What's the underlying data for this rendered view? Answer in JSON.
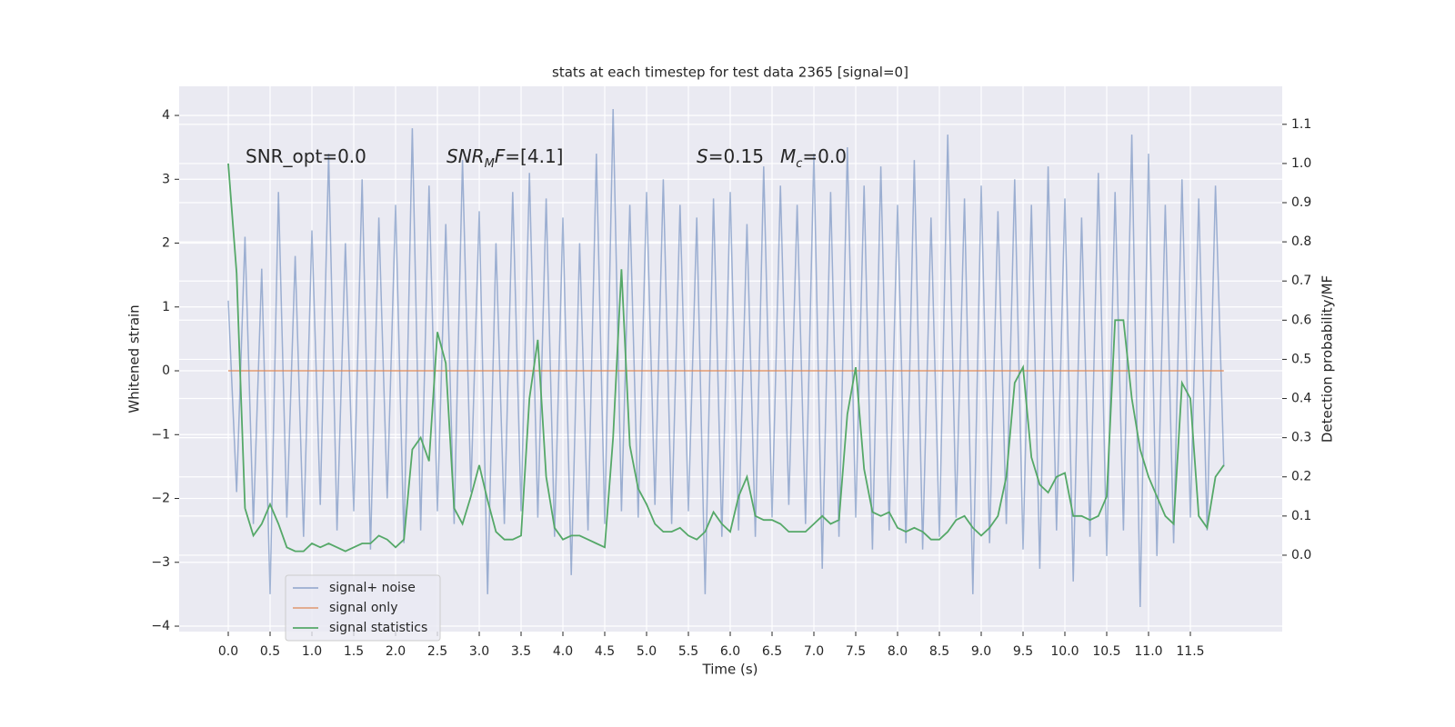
{
  "chart_data": {
    "type": "line",
    "title": "stats at each timestep for test data 2365 [signal=0]",
    "x_label": "Time (s)",
    "y_label": "Whitened strain",
    "y2_label": "Detection probability/MF",
    "x": [
      0.0,
      0.1,
      0.2,
      0.3,
      0.4,
      0.5,
      0.6,
      0.7,
      0.8,
      0.9,
      1.0,
      1.1,
      1.2,
      1.3,
      1.4,
      1.5,
      1.6,
      1.7,
      1.8,
      1.9,
      2.0,
      2.1,
      2.2,
      2.3,
      2.4,
      2.5,
      2.6,
      2.7,
      2.8,
      2.9,
      3.0,
      3.1,
      3.2,
      3.3,
      3.4,
      3.5,
      3.6,
      3.7,
      3.8,
      3.9,
      4.0,
      4.1,
      4.2,
      4.3,
      4.4,
      4.5,
      4.6,
      4.7,
      4.8,
      4.9,
      5.0,
      5.1,
      5.2,
      5.3,
      5.4,
      5.5,
      5.6,
      5.7,
      5.8,
      5.9,
      6.0,
      6.1,
      6.2,
      6.3,
      6.4,
      6.5,
      6.6,
      6.7,
      6.8,
      6.9,
      7.0,
      7.1,
      7.2,
      7.3,
      7.4,
      7.5,
      7.6,
      7.7,
      7.8,
      7.9,
      8.0,
      8.1,
      8.2,
      8.3,
      8.4,
      8.5,
      8.6,
      8.7,
      8.8,
      8.9,
      9.0,
      9.1,
      9.2,
      9.3,
      9.4,
      9.5,
      9.6,
      9.7,
      9.8,
      9.9,
      10.0,
      10.1,
      10.2,
      10.3,
      10.4,
      10.5,
      10.6,
      10.7,
      10.8,
      10.9,
      11.0,
      11.1,
      11.2,
      11.3,
      11.4,
      11.5,
      11.6,
      11.7,
      11.8,
      11.9
    ],
    "series": [
      {
        "name": "signal+ noise",
        "color": "#4c72b0",
        "values": [
          1.1,
          -1.9,
          2.1,
          -2.4,
          1.6,
          -3.5,
          2.8,
          -2.3,
          1.8,
          -2.6,
          2.2,
          -2.1,
          3.4,
          -2.5,
          2.0,
          -2.2,
          3.0,
          -2.8,
          2.4,
          -2.0,
          2.6,
          -2.7,
          3.8,
          -2.5,
          2.9,
          -2.2,
          2.3,
          -2.4,
          3.3,
          -1.9,
          2.5,
          -3.5,
          2.0,
          -2.4,
          2.8,
          -2.2,
          3.1,
          -2.3,
          2.7,
          -2.6,
          2.4,
          -3.2,
          2.0,
          -2.5,
          3.4,
          -2.4,
          4.1,
          -2.2,
          2.6,
          -2.3,
          2.8,
          -2.1,
          3.0,
          -2.4,
          2.6,
          -2.2,
          2.4,
          -3.5,
          2.7,
          -2.6,
          2.8,
          -2.5,
          2.3,
          -2.6,
          3.2,
          -2.3,
          2.9,
          -2.1,
          2.6,
          -2.4,
          3.4,
          -3.1,
          2.8,
          -2.6,
          3.5,
          -2.3,
          2.9,
          -2.8,
          3.2,
          -2.5,
          2.6,
          -2.7,
          3.3,
          -2.8,
          2.4,
          -2.6,
          3.7,
          -2.3,
          2.7,
          -3.5,
          2.9,
          -2.7,
          2.5,
          -2.4,
          3.0,
          -2.8,
          2.6,
          -3.1,
          3.2,
          -2.5,
          2.7,
          -3.3,
          2.4,
          -2.6,
          3.1,
          -2.9,
          2.8,
          -2.5,
          3.7,
          -3.7,
          3.4,
          -2.9,
          2.6,
          -2.7,
          3.0,
          -2.3,
          2.7,
          -2.5,
          2.9,
          -1.5
        ]
      },
      {
        "name": "signal only",
        "color": "#dd8452",
        "values": [
          0,
          0,
          0,
          0,
          0,
          0,
          0,
          0,
          0,
          0,
          0,
          0,
          0,
          0,
          0,
          0,
          0,
          0,
          0,
          0,
          0,
          0,
          0,
          0,
          0,
          0,
          0,
          0,
          0,
          0,
          0,
          0,
          0,
          0,
          0,
          0,
          0,
          0,
          0,
          0,
          0,
          0,
          0,
          0,
          0,
          0,
          0,
          0,
          0,
          0,
          0,
          0,
          0,
          0,
          0,
          0,
          0,
          0,
          0,
          0,
          0,
          0,
          0,
          0,
          0,
          0,
          0,
          0,
          0,
          0,
          0,
          0,
          0,
          0,
          0,
          0,
          0,
          0,
          0,
          0,
          0,
          0,
          0,
          0,
          0,
          0,
          0,
          0,
          0,
          0,
          0,
          0,
          0,
          0,
          0,
          0,
          0,
          0,
          0,
          0,
          0,
          0,
          0,
          0,
          0,
          0,
          0,
          0,
          0,
          0,
          0,
          0,
          0,
          0,
          0,
          0,
          0,
          0,
          0,
          0
        ]
      },
      {
        "name": "signal statistics",
        "color": "#55a868",
        "axis": "y2",
        "values": [
          1.0,
          0.72,
          0.12,
          0.05,
          0.08,
          0.13,
          0.08,
          0.02,
          0.01,
          0.01,
          0.03,
          0.02,
          0.03,
          0.02,
          0.01,
          0.02,
          0.03,
          0.03,
          0.05,
          0.04,
          0.02,
          0.04,
          0.27,
          0.3,
          0.24,
          0.57,
          0.49,
          0.12,
          0.08,
          0.15,
          0.23,
          0.14,
          0.06,
          0.04,
          0.04,
          0.05,
          0.4,
          0.55,
          0.2,
          0.07,
          0.04,
          0.05,
          0.05,
          0.04,
          0.03,
          0.02,
          0.3,
          0.73,
          0.28,
          0.17,
          0.13,
          0.08,
          0.06,
          0.06,
          0.07,
          0.05,
          0.04,
          0.06,
          0.11,
          0.08,
          0.06,
          0.15,
          0.2,
          0.1,
          0.09,
          0.09,
          0.08,
          0.06,
          0.06,
          0.06,
          0.08,
          0.1,
          0.08,
          0.09,
          0.36,
          0.48,
          0.22,
          0.11,
          0.1,
          0.11,
          0.07,
          0.06,
          0.07,
          0.06,
          0.04,
          0.04,
          0.06,
          0.09,
          0.1,
          0.07,
          0.05,
          0.07,
          0.1,
          0.2,
          0.44,
          0.48,
          0.25,
          0.18,
          0.16,
          0.2,
          0.21,
          0.1,
          0.1,
          0.09,
          0.1,
          0.15,
          0.6,
          0.6,
          0.4,
          0.27,
          0.2,
          0.15,
          0.1,
          0.08,
          0.44,
          0.4,
          0.1,
          0.07,
          0.2,
          0.23
        ]
      }
    ],
    "xlim": [
      -0.587,
      12.598
    ],
    "ylim": [
      -4.085,
      4.456
    ],
    "y2lim": [
      -0.195,
      1.197
    ],
    "xticks": [
      {
        "value": 0,
        "label": "0.0"
      },
      {
        "value": 0.5,
        "label": "0.5"
      },
      {
        "value": 1,
        "label": "1.0"
      },
      {
        "value": 1.5,
        "label": "1.5"
      },
      {
        "value": 2,
        "label": "2.0"
      },
      {
        "value": 2.5,
        "label": "2.5"
      },
      {
        "value": 3,
        "label": "3.0"
      },
      {
        "value": 3.5,
        "label": "3.5"
      },
      {
        "value": 4,
        "label": "4.0"
      },
      {
        "value": 4.5,
        "label": "4.5"
      },
      {
        "value": 5,
        "label": "5.0"
      },
      {
        "value": 5.5,
        "label": "5.5"
      },
      {
        "value": 6,
        "label": "6.0"
      },
      {
        "value": 6.5,
        "label": "6.5"
      },
      {
        "value": 7,
        "label": "7.0"
      },
      {
        "value": 7.5,
        "label": "7.5"
      },
      {
        "value": 8,
        "label": "8.0"
      },
      {
        "value": 8.5,
        "label": "8.5"
      },
      {
        "value": 9,
        "label": "9.0"
      },
      {
        "value": 9.5,
        "label": "9.5"
      },
      {
        "value": 10,
        "label": "10.0"
      },
      {
        "value": 10.5,
        "label": "10.5"
      },
      {
        "value": 11,
        "label": "11.0"
      },
      {
        "value": 11.5,
        "label": "11.5"
      }
    ],
    "yticks": [
      {
        "value": -4,
        "label": "−4"
      },
      {
        "value": -3,
        "label": "−3"
      },
      {
        "value": -2,
        "label": "−2"
      },
      {
        "value": -1,
        "label": "−1"
      },
      0,
      1,
      2,
      3,
      4
    ],
    "y2ticks": [
      {
        "value": 0,
        "label": "0.0"
      },
      {
        "value": 0.1,
        "label": "0.1"
      },
      {
        "value": 0.2,
        "label": "0.2"
      },
      {
        "value": 0.3,
        "label": "0.3"
      },
      {
        "value": 0.4,
        "label": "0.4"
      },
      {
        "value": 0.5,
        "label": "0.5"
      },
      {
        "value": 0.6,
        "label": "0.6"
      },
      {
        "value": 0.7,
        "label": "0.7"
      },
      {
        "value": 0.8,
        "label": "0.8"
      },
      {
        "value": 0.9,
        "label": "0.9"
      },
      {
        "value": 1,
        "label": "1.0"
      },
      {
        "value": 1.1,
        "label": "1.1"
      }
    ],
    "annotations": [
      [
        "SNR_opt=0.0"
      ],
      [
        "SNR",
        "M",
        "F",
        "=[4.1]"
      ],
      [
        "S",
        "=0.15",
        "M",
        "c",
        "=0.0"
      ]
    ],
    "grid": true,
    "legend": "lower left"
  }
}
